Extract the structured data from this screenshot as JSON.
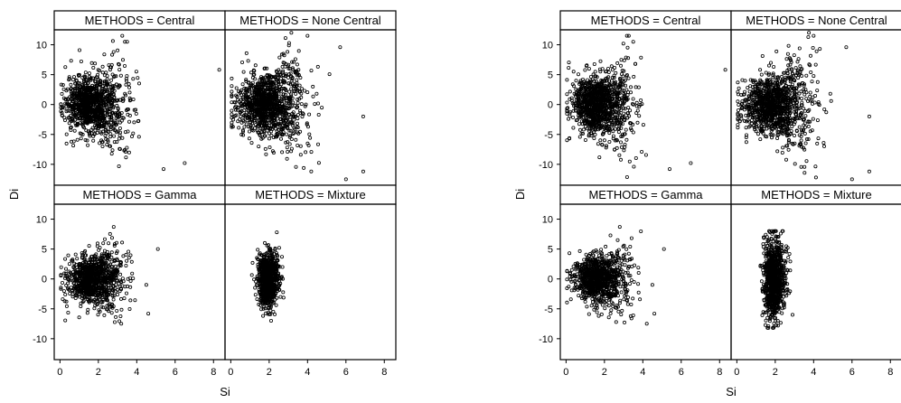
{
  "chart_data": [
    {
      "type": "scatter",
      "xlabel": "Si",
      "ylabel": "Di",
      "xlim": [
        -0.3,
        8.6
      ],
      "ylim": [
        -13.5,
        12.5
      ],
      "xticks": [
        0,
        2,
        4,
        6,
        8
      ],
      "yticks": [
        -10,
        -5,
        0,
        5,
        10
      ],
      "marker": "open-circle",
      "grid": false,
      "panels": [
        {
          "label": "METHODS = Central",
          "n_points": 1100,
          "x_center": 1.7,
          "x_spread": 0.9,
          "x_min": 0.05,
          "x_max": 6.5,
          "y_center": 0,
          "y_spread": 2.3,
          "y_spread_growth": 0.55,
          "y_min": -12.5,
          "y_max": 11.5,
          "outliers": [
            [
              8.3,
              5.8
            ],
            [
              6.5,
              -9.8
            ],
            [
              5.4,
              -10.8
            ],
            [
              3.5,
              10.5
            ]
          ]
        },
        {
          "label": "METHODS = None Central",
          "n_points": 1150,
          "x_center": 1.9,
          "x_spread": 1.0,
          "x_min": 0.05,
          "x_max": 7.2,
          "y_center": 0,
          "y_spread": 2.4,
          "y_spread_growth": 0.65,
          "y_min": -13,
          "y_max": 12,
          "outliers": [
            [
              6.9,
              -11.2
            ],
            [
              6.0,
              -12.5
            ],
            [
              5.7,
              9.6
            ],
            [
              6.9,
              -2.0
            ],
            [
              4.0,
              11.5
            ]
          ]
        },
        {
          "label": "METHODS = Gamma",
          "n_points": 1000,
          "x_center": 1.7,
          "x_spread": 0.8,
          "x_min": 0.05,
          "x_max": 4.6,
          "y_center": 0,
          "y_spread": 1.9,
          "y_spread_growth": 0.45,
          "y_min": -7.5,
          "y_max": 8.8,
          "outliers": [
            [
              5.1,
              5.0
            ],
            [
              4.5,
              -1.0
            ],
            [
              4.6,
              -5.8
            ],
            [
              2.8,
              8.7
            ]
          ]
        },
        {
          "label": "METHODS = Mixture",
          "n_points": 900,
          "x_center": 1.9,
          "x_spread": 0.3,
          "x_min": 1.1,
          "x_max": 2.9,
          "y_center": 0,
          "y_spread": 2.2,
          "y_spread_growth": 0.1,
          "y_min": -7.5,
          "y_max": 7.8,
          "outliers": [
            [
              2.4,
              7.8
            ],
            [
              2.1,
              -7.0
            ]
          ]
        }
      ]
    },
    {
      "type": "scatter",
      "xlabel": "Si",
      "ylabel": "Di",
      "xlim": [
        -0.3,
        8.6
      ],
      "ylim": [
        -13.5,
        12.5
      ],
      "xticks": [
        0,
        2,
        4,
        6,
        8
      ],
      "yticks": [
        -10,
        -5,
        0,
        5,
        10
      ],
      "marker": "open-circle",
      "grid": false,
      "panels": [
        {
          "label": "METHODS = Central",
          "n_points": 1100,
          "x_center": 1.7,
          "x_spread": 0.9,
          "x_min": 0.05,
          "x_max": 6.5,
          "y_center": 0,
          "y_spread": 2.3,
          "y_spread_growth": 0.55,
          "y_min": -12.5,
          "y_max": 11.5,
          "outliers": [
            [
              8.3,
              5.8
            ],
            [
              6.5,
              -9.8
            ],
            [
              5.4,
              -10.8
            ],
            [
              3.5,
              10.5
            ]
          ]
        },
        {
          "label": "METHODS = None Central",
          "n_points": 1150,
          "x_center": 1.9,
          "x_spread": 1.0,
          "x_min": 0.05,
          "x_max": 7.2,
          "y_center": 0,
          "y_spread": 2.4,
          "y_spread_growth": 0.65,
          "y_min": -13,
          "y_max": 12,
          "outliers": [
            [
              6.9,
              -11.2
            ],
            [
              6.0,
              -12.5
            ],
            [
              5.7,
              9.6
            ],
            [
              6.9,
              -2.0
            ],
            [
              4.0,
              11.5
            ]
          ]
        },
        {
          "label": "METHODS = Gamma",
          "n_points": 1000,
          "x_center": 1.7,
          "x_spread": 0.8,
          "x_min": 0.05,
          "x_max": 4.6,
          "y_center": 0,
          "y_spread": 1.9,
          "y_spread_growth": 0.45,
          "y_min": -7.5,
          "y_max": 8.8,
          "outliers": [
            [
              5.1,
              5.0
            ],
            [
              4.5,
              -1.0
            ],
            [
              4.6,
              -5.8
            ],
            [
              2.8,
              8.7
            ]
          ]
        },
        {
          "label": "METHODS = Mixture",
          "n_points": 900,
          "x_center": 1.9,
          "x_spread": 0.3,
          "x_min": 1.1,
          "x_max": 2.9,
          "y_center": 0,
          "y_spread": 3.3,
          "y_spread_growth": 0.1,
          "y_min": -8.2,
          "y_max": 8.0,
          "outliers": [
            [
              2.4,
              8.0
            ],
            [
              1.6,
              -8.2
            ],
            [
              2.9,
              -6.0
            ]
          ]
        }
      ]
    }
  ]
}
